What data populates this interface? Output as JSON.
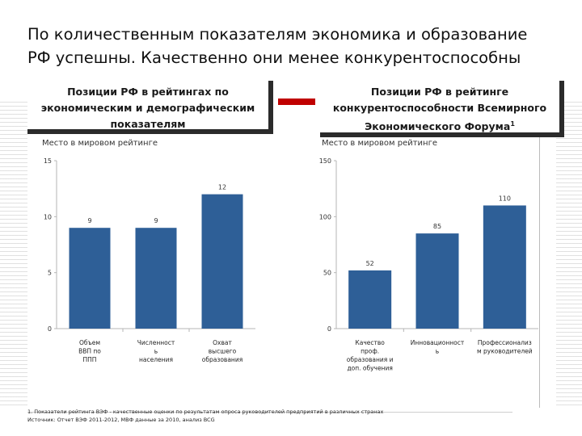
{
  "slide": {
    "title_line1": "По количественным показателям экономика и образование",
    "title_line2": "РФ успешны. Качественно они менее конкурентоспособны"
  },
  "left_box": {
    "text": "Позиции РФ в рейтингах по экономическим и демографическим показателям"
  },
  "right_box": {
    "text": "Позиции РФ в рейтинге конкурентоспособности Всемирного Экономического Форума",
    "superscript": "1"
  },
  "colors": {
    "bar": "#2e5f97",
    "connector": "#c00000",
    "box_shadow": "#2b2b2b"
  },
  "chart_data": [
    {
      "type": "bar",
      "title": "",
      "ylabel": "Место в мировом рейтинге",
      "xlabel": "",
      "categories": [
        [
          "Объем",
          "ВВП по",
          "ППП"
        ],
        [
          "Численност",
          "ь",
          "населения"
        ],
        [
          "Охват",
          "высшего",
          "образования"
        ]
      ],
      "values": [
        9,
        9,
        12
      ],
      "ylim": [
        0,
        15
      ],
      "yticks": [
        0,
        5,
        10,
        15
      ],
      "grid": false
    },
    {
      "type": "bar",
      "title": "",
      "ylabel": "Место в мировом рейтинге",
      "xlabel": "",
      "categories": [
        [
          "Качество",
          "проф.",
          "образования и",
          "доп. обучения"
        ],
        [
          "Инновационност",
          "ь"
        ],
        [
          "Профессионализ",
          "м руководителей"
        ]
      ],
      "values": [
        52,
        85,
        110
      ],
      "ylim": [
        0,
        150
      ],
      "yticks": [
        0,
        50,
        100,
        150
      ],
      "grid": false
    }
  ],
  "footnotes": {
    "line1": "1. Показатели рейтинга ВЭФ - качественные оценки по результатам опроса руководителей предприятий в различных странах",
    "line2": "Источник: Отчет ВЭФ 2011-2012, МВФ данные за 2010, анализ BCG"
  }
}
